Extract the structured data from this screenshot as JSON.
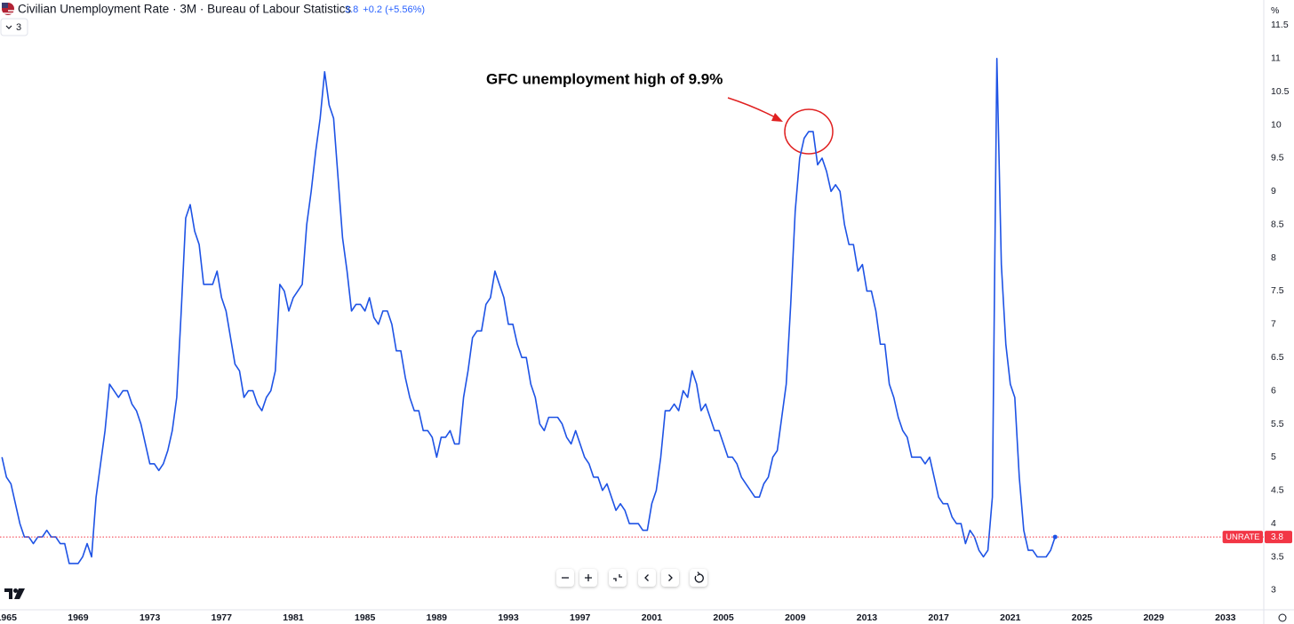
{
  "header": {
    "title": "Civilian Unemployment Rate · 3M · Bureau of Labour Statistics",
    "change": "+0.2 (+5.56%)",
    "indicator_count": "3"
  },
  "chart_data": {
    "type": "line",
    "annotation": "GFC unemployment high of 9.9%",
    "y_unit": "%",
    "xlim": [
      1964.64,
      2035.14
    ],
    "ylim": [
      2.49,
      11.88
    ],
    "xticks": [
      1965,
      1969,
      1973,
      1977,
      1981,
      1985,
      1989,
      1993,
      1997,
      2001,
      2005,
      2009,
      2013,
      2017,
      2021,
      2025,
      2029,
      2033
    ],
    "yticks": [
      3,
      3.5,
      4,
      4.5,
      5,
      5.5,
      6,
      6.5,
      7,
      7.5,
      8,
      8.5,
      9,
      9.5,
      10,
      10.5,
      11,
      11.5
    ],
    "grid": false,
    "last_value_line": true,
    "x": [
      1964.75,
      1965,
      1965.25,
      1965.5,
      1965.75,
      1966,
      1966.25,
      1966.5,
      1966.75,
      1967,
      1967.25,
      1967.5,
      1967.75,
      1968,
      1968.25,
      1968.5,
      1968.75,
      1969,
      1969.25,
      1969.5,
      1969.75,
      1970,
      1970.25,
      1970.5,
      1970.75,
      1971,
      1971.25,
      1971.5,
      1971.75,
      1972,
      1972.25,
      1972.5,
      1972.75,
      1973,
      1973.25,
      1973.5,
      1973.75,
      1974,
      1974.25,
      1974.5,
      1974.75,
      1975,
      1975.25,
      1975.5,
      1975.75,
      1976,
      1976.25,
      1976.5,
      1976.75,
      1977,
      1977.25,
      1977.5,
      1977.75,
      1978,
      1978.25,
      1978.5,
      1978.75,
      1979,
      1979.25,
      1979.5,
      1979.75,
      1980,
      1980.25,
      1980.5,
      1980.75,
      1981,
      1981.25,
      1981.5,
      1981.75,
      1982,
      1982.25,
      1982.5,
      1982.75,
      1983,
      1983.25,
      1983.5,
      1983.75,
      1984,
      1984.25,
      1984.5,
      1984.75,
      1985,
      1985.25,
      1985.5,
      1985.75,
      1986,
      1986.25,
      1986.5,
      1986.75,
      1987,
      1987.25,
      1987.5,
      1987.75,
      1988,
      1988.25,
      1988.5,
      1988.75,
      1989,
      1989.25,
      1989.5,
      1989.75,
      1990,
      1990.25,
      1990.5,
      1990.75,
      1991,
      1991.25,
      1991.5,
      1991.75,
      1992,
      1992.25,
      1992.5,
      1992.75,
      1993,
      1993.25,
      1993.5,
      1993.75,
      1994,
      1994.25,
      1994.5,
      1994.75,
      1995,
      1995.25,
      1995.5,
      1995.75,
      1996,
      1996.25,
      1996.5,
      1996.75,
      1997,
      1997.25,
      1997.5,
      1997.75,
      1998,
      1998.25,
      1998.5,
      1998.75,
      1999,
      1999.25,
      1999.5,
      1999.75,
      2000,
      2000.25,
      2000.5,
      2000.75,
      2001,
      2001.25,
      2001.5,
      2001.75,
      2002,
      2002.25,
      2002.5,
      2002.75,
      2003,
      2003.25,
      2003.5,
      2003.75,
      2004,
      2004.25,
      2004.5,
      2004.75,
      2005,
      2005.25,
      2005.5,
      2005.75,
      2006,
      2006.25,
      2006.5,
      2006.75,
      2007,
      2007.25,
      2007.5,
      2007.75,
      2008,
      2008.25,
      2008.5,
      2008.75,
      2009,
      2009.25,
      2009.5,
      2009.75,
      2010,
      2010.25,
      2010.5,
      2010.75,
      2011,
      2011.25,
      2011.5,
      2011.75,
      2012,
      2012.25,
      2012.5,
      2012.75,
      2013,
      2013.25,
      2013.5,
      2013.75,
      2014,
      2014.25,
      2014.5,
      2014.75,
      2015,
      2015.25,
      2015.5,
      2015.75,
      2016,
      2016.25,
      2016.5,
      2016.75,
      2017,
      2017.25,
      2017.5,
      2017.75,
      2018,
      2018.25,
      2018.5,
      2018.75,
      2019,
      2019.25,
      2019.5,
      2019.75,
      2020,
      2020.25,
      2020.5,
      2020.75,
      2021,
      2021.25,
      2021.5,
      2021.75,
      2022,
      2022.25,
      2022.5,
      2022.75,
      2023,
      2023.25,
      2023.5
    ],
    "series": [
      {
        "name": "UNRATE",
        "color": "#1e53e5",
        "label_color": "#f23645",
        "values": [
          5.0,
          4.7,
          4.6,
          4.3,
          4.0,
          3.8,
          3.8,
          3.7,
          3.8,
          3.8,
          3.9,
          3.8,
          3.8,
          3.7,
          3.7,
          3.4,
          3.4,
          3.4,
          3.5,
          3.7,
          3.5,
          4.4,
          4.9,
          5.4,
          6.1,
          6.0,
          5.9,
          6.0,
          6.0,
          5.8,
          5.7,
          5.5,
          5.2,
          4.9,
          4.9,
          4.8,
          4.9,
          5.1,
          5.4,
          5.9,
          7.2,
          8.6,
          8.8,
          8.4,
          8.2,
          7.6,
          7.6,
          7.6,
          7.8,
          7.4,
          7.2,
          6.8,
          6.4,
          6.3,
          5.9,
          6.0,
          6.0,
          5.8,
          5.7,
          5.9,
          6.0,
          6.3,
          7.6,
          7.5,
          7.2,
          7.4,
          7.5,
          7.6,
          8.5,
          9.0,
          9.6,
          10.1,
          10.8,
          10.3,
          10.1,
          9.2,
          8.3,
          7.8,
          7.2,
          7.3,
          7.3,
          7.2,
          7.4,
          7.1,
          7.0,
          7.2,
          7.2,
          7.0,
          6.6,
          6.6,
          6.2,
          5.9,
          5.7,
          5.7,
          5.4,
          5.4,
          5.3,
          5.0,
          5.3,
          5.3,
          5.4,
          5.2,
          5.2,
          5.9,
          6.3,
          6.8,
          6.9,
          6.9,
          7.3,
          7.4,
          7.8,
          7.6,
          7.4,
          7.0,
          7.0,
          6.7,
          6.5,
          6.5,
          6.1,
          5.9,
          5.5,
          5.4,
          5.6,
          5.6,
          5.6,
          5.5,
          5.3,
          5.2,
          5.4,
          5.2,
          5.0,
          4.9,
          4.7,
          4.7,
          4.5,
          4.6,
          4.4,
          4.2,
          4.3,
          4.2,
          4.0,
          4.0,
          4.0,
          3.9,
          3.9,
          4.3,
          4.5,
          5.0,
          5.7,
          5.7,
          5.8,
          5.7,
          6.0,
          5.9,
          6.3,
          6.1,
          5.7,
          5.8,
          5.6,
          5.4,
          5.4,
          5.2,
          5.0,
          5.0,
          4.9,
          4.7,
          4.6,
          4.5,
          4.4,
          4.4,
          4.6,
          4.7,
          5.0,
          5.1,
          5.6,
          6.1,
          7.3,
          8.7,
          9.5,
          9.8,
          9.9,
          9.9,
          9.4,
          9.5,
          9.3,
          9.0,
          9.1,
          9.0,
          8.5,
          8.2,
          8.2,
          7.8,
          7.9,
          7.5,
          7.5,
          7.2,
          6.7,
          6.7,
          6.1,
          5.9,
          5.6,
          5.4,
          5.3,
          5.0,
          5.0,
          5.0,
          4.9,
          5.0,
          4.7,
          4.4,
          4.3,
          4.3,
          4.1,
          4.0,
          4.0,
          3.7,
          3.9,
          3.8,
          3.6,
          3.5,
          3.6,
          4.4,
          11.0,
          7.9,
          6.7,
          6.1,
          5.9,
          4.7,
          3.9,
          3.6,
          3.6,
          3.5,
          3.5,
          3.5,
          3.6,
          3.8
        ]
      }
    ]
  }
}
